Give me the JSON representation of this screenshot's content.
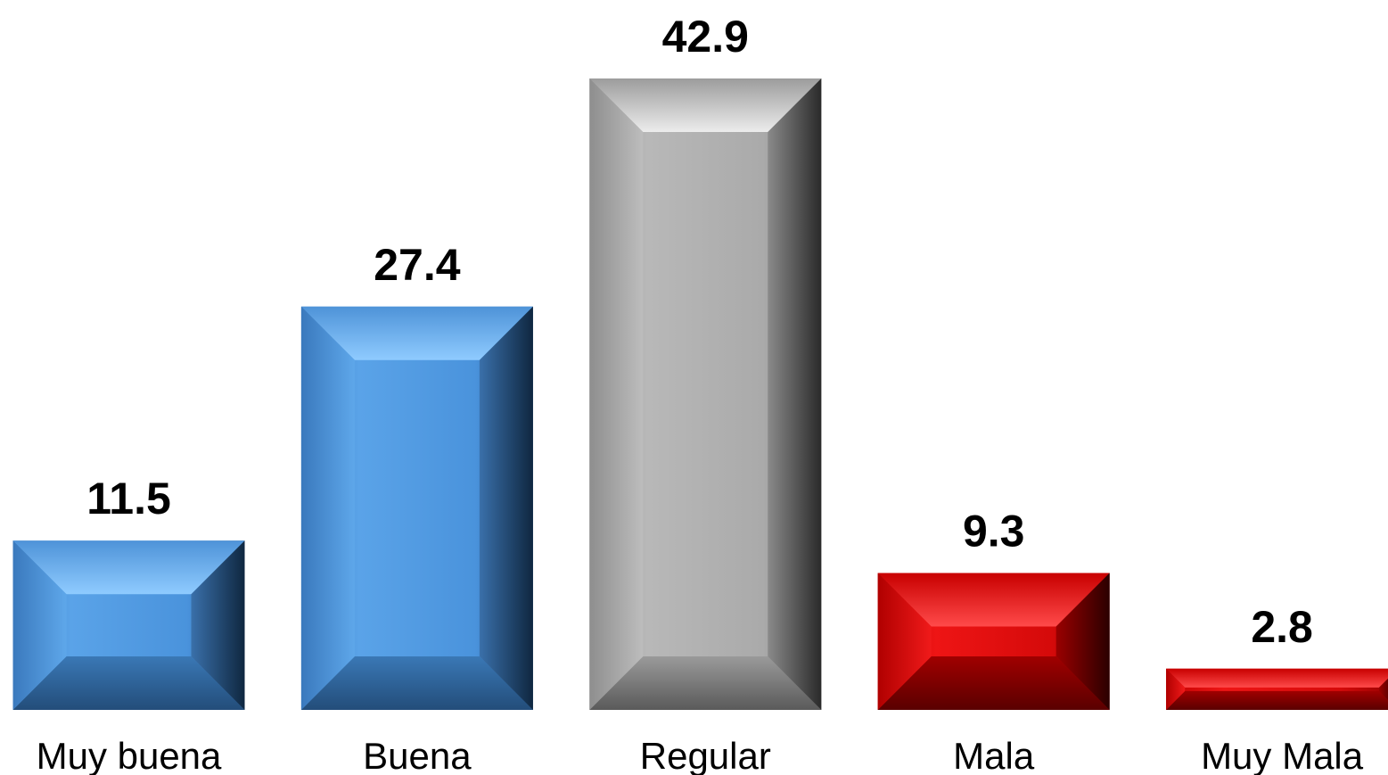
{
  "chart_data": {
    "type": "bar",
    "categories": [
      "Muy buena",
      "Buena",
      "Regular",
      "Mala",
      "Muy Mala"
    ],
    "values": [
      11.5,
      27.4,
      42.9,
      9.3,
      2.8
    ],
    "value_labels": [
      "11.5",
      "27.4",
      "42.9",
      "9.3",
      "2.8"
    ],
    "ylim": [
      0,
      42.9
    ],
    "grid": false,
    "legend": "none",
    "colors": [
      "#4a90d6",
      "#4a90d6",
      "#aaaaaa",
      "#d40a0a",
      "#c80a0a"
    ]
  }
}
